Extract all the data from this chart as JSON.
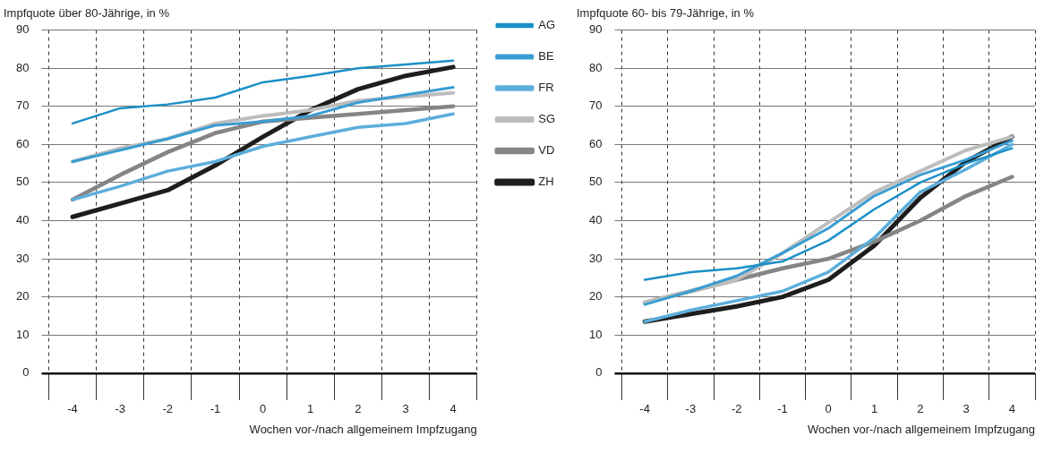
{
  "chart_data": [
    {
      "type": "line",
      "title": "Impfquote über 80-Jährige, in %",
      "xlabel": "Wochen vor-/nach allgemeinem Impfzugang",
      "categories": [
        "-4",
        "-3",
        "-2",
        "-1",
        "0",
        "1",
        "2",
        "3",
        "4"
      ],
      "ylim": [
        0,
        90
      ],
      "yticks": [
        0,
        10,
        20,
        30,
        40,
        50,
        60,
        70,
        80,
        90
      ],
      "grid": true,
      "legend": "right",
      "marker": "none",
      "line_style": "solid",
      "series": [
        {
          "name": "AG",
          "color": "#1b8fc6",
          "values": [
            65.5,
            69.5,
            70.5,
            72.3,
            76.3,
            78,
            80,
            81,
            82
          ]
        },
        {
          "name": "BE",
          "color": "#3a9dd2",
          "values": [
            55.5,
            58.5,
            61.5,
            65,
            66,
            67.5,
            71,
            73,
            75
          ]
        },
        {
          "name": "FR",
          "color": "#5caedb",
          "values": [
            45.5,
            49,
            53,
            55.5,
            59.5,
            62,
            64.5,
            65.5,
            68
          ]
        },
        {
          "name": "SG",
          "color": "#bdbdbd",
          "values": [
            55.5,
            59,
            61.5,
            65.5,
            67.5,
            69,
            71.5,
            72.5,
            73.5
          ]
        },
        {
          "name": "VD",
          "color": "#858585",
          "values": [
            45.5,
            52,
            58,
            63,
            66,
            67,
            68,
            69,
            70
          ]
        },
        {
          "name": "ZH",
          "color": "#1e1e1e",
          "values": [
            41,
            44.5,
            48,
            54.5,
            62,
            69,
            74.5,
            78,
            80.3
          ]
        }
      ]
    },
    {
      "type": "line",
      "title": "Impfquote 60- bis 79-Jährige, in %",
      "xlabel": "Wochen vor-/nach allgemeinem Impfzugang",
      "categories": [
        "-4",
        "-3",
        "-2",
        "-1",
        "0",
        "1",
        "2",
        "3",
        "4"
      ],
      "ylim": [
        0,
        90
      ],
      "yticks": [
        0,
        10,
        20,
        30,
        40,
        50,
        60,
        70,
        80,
        90
      ],
      "grid": true,
      "marker": "none",
      "line_style": "solid",
      "series": [
        {
          "color": "#1b8fc6",
          "values": [
            24.5,
            26.5,
            27.5,
            29.3,
            34.8,
            43,
            50,
            55,
            59
          ]
        },
        {
          "color": "#3a9dd2",
          "values": [
            18,
            21.5,
            25.5,
            31.5,
            38,
            46.5,
            52,
            56,
            61
          ]
        },
        {
          "color": "#5caedb",
          "values": [
            13.5,
            16.5,
            19,
            21.5,
            26.5,
            35.5,
            47.5,
            53.5,
            60
          ]
        },
        {
          "color": "#bdbdbd",
          "values": [
            18.5,
            21.5,
            24.5,
            31.5,
            39.5,
            47.5,
            53,
            58.5,
            62
          ]
        },
        {
          "color": "#858585",
          "values": [
            18.5,
            21.5,
            24.5,
            27.5,
            30,
            34.5,
            40,
            46.5,
            51.5
          ]
        },
        {
          "color": "#1e1e1e",
          "values": [
            13.5,
            15.5,
            17.5,
            20,
            24.5,
            33.5,
            46,
            55.5,
            62
          ]
        }
      ]
    }
  ]
}
